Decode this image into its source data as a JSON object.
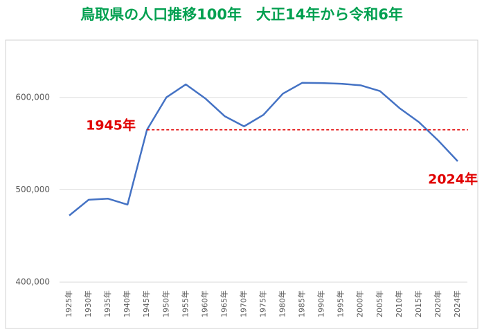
{
  "chart_data": {
    "type": "line",
    "title": "鳥取県の人口推移100年　大正14年から令和6年",
    "categories": [
      "1925年",
      "1930年",
      "1935年",
      "1940年",
      "1945年",
      "1950年",
      "1955年",
      "1960年",
      "1965年",
      "1970年",
      "1975年",
      "1980年",
      "1985年",
      "1990年",
      "1995年",
      "2000年",
      "2005年",
      "2010年",
      "2015年",
      "2020年",
      "2024年"
    ],
    "values": [
      472230,
      489266,
      490461,
      484000,
      565000,
      600177,
      614259,
      599135,
      579853,
      568777,
      581311,
      604221,
      616024,
      615722,
      614929,
      613289,
      607012,
      588667,
      573441,
      553407,
      531000
    ],
    "color": "#4472c4",
    "ylim": [
      400000,
      660000
    ],
    "yticks": [
      {
        "value": 400000,
        "label": "400,000"
      },
      {
        "value": 500000,
        "label": "500,000"
      },
      {
        "value": 600000,
        "label": "600,000"
      }
    ],
    "grid": true,
    "reference_color": "#e00000",
    "annotations": [
      {
        "text": "1945年"
      },
      {
        "text": "2024年"
      }
    ]
  }
}
